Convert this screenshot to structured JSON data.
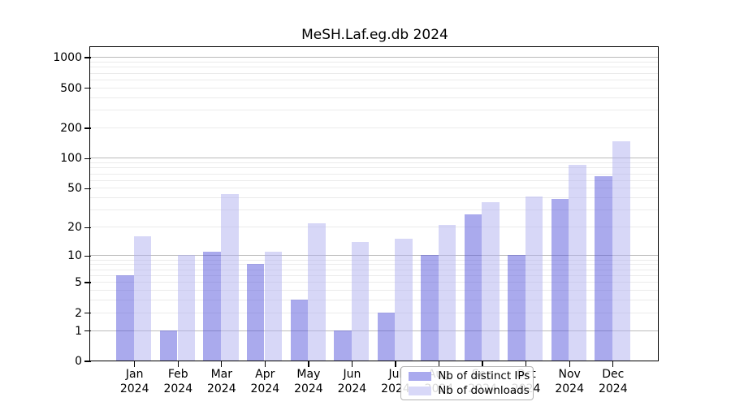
{
  "chart_data": {
    "type": "bar",
    "title": "MeSH.Laf.eg.db 2024",
    "categories": [
      "Jan",
      "Feb",
      "Mar",
      "Apr",
      "May",
      "Jun",
      "Jul",
      "Aug",
      "Sep",
      "Oct",
      "Nov",
      "Dec"
    ],
    "year": "2024",
    "series": [
      {
        "name": "Nb of distinct IPs",
        "color_hex": "#aaaaee",
        "color_rgba": "rgba(86,86,220,0.5)",
        "values": [
          6,
          1,
          11,
          8,
          3,
          1,
          2,
          10,
          27,
          10,
          39,
          66
        ]
      },
      {
        "name": "Nb of downloads",
        "color_hex": "#d8d8f8",
        "color_rgba": "rgba(176,176,240,0.5)",
        "values": [
          16,
          10,
          43,
          11,
          22,
          14,
          15,
          21,
          36,
          41,
          85,
          146
        ]
      }
    ],
    "yscale": "log1p",
    "yticks": [
      0,
      1,
      2,
      5,
      10,
      20,
      50,
      100,
      200,
      500,
      1000
    ],
    "major_gridlines": [
      1,
      10,
      100,
      1000
    ],
    "ylim": [
      0,
      1250
    ],
    "xlabel": "",
    "ylabel": "",
    "grid": "horizontal log minor+major, drawn under semi-transparent bars",
    "legend_position": "inside lower-center-left",
    "frame_color": "#000000",
    "background_color": "#ffffff"
  }
}
